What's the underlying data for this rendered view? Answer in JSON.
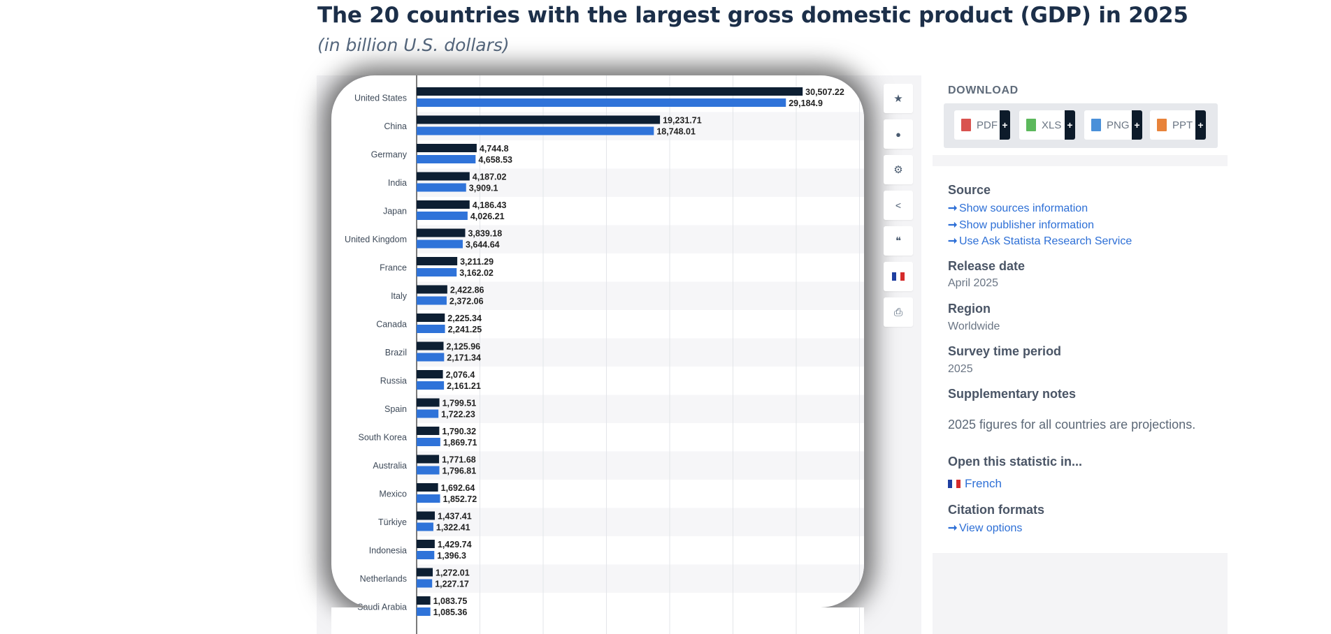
{
  "page": {
    "title": "The 20 countries with the largest gross domestic product (GDP) in 2025",
    "subtitle": "(in billion U.S. dollars)"
  },
  "colors": {
    "series_dark": "#0d1f33",
    "series_blue": "#2f73d9",
    "link": "#2d6fd6"
  },
  "toolbar": {
    "items": [
      {
        "name": "star-icon",
        "glyph": "★"
      },
      {
        "name": "bell-icon",
        "glyph": "🔔"
      },
      {
        "name": "gear-icon",
        "glyph": "⚙"
      },
      {
        "name": "share-icon",
        "glyph": "⋖"
      },
      {
        "name": "quote-icon",
        "glyph": "❝"
      },
      {
        "name": "french-flag-icon",
        "glyph": ""
      },
      {
        "name": "print-icon",
        "glyph": "⎙"
      }
    ]
  },
  "download": {
    "title": "DOWNLOAD",
    "buttons": [
      {
        "label": "PDF",
        "color": "#d9534f"
      },
      {
        "label": "XLS",
        "color": "#5cb85c"
      },
      {
        "label": "PNG",
        "color": "#4a90d9"
      },
      {
        "label": "PPT",
        "color": "#e8833a"
      }
    ],
    "plus": "+"
  },
  "info": {
    "source_heading": "Source",
    "source_links": [
      "Show sources information",
      "Show publisher information",
      "Use Ask Statista Research Service"
    ],
    "release_heading": "Release date",
    "release_value": "April 2025",
    "region_heading": "Region",
    "region_value": "Worldwide",
    "period_heading": "Survey time period",
    "period_value": "2025",
    "notes_heading": "Supplementary notes",
    "notes_value": "2025 figures for all countries are projections.",
    "open_heading": "Open this statistic in...",
    "open_value": "French",
    "citation_heading": "Citation formats",
    "citation_link": "View options"
  },
  "chart_data": {
    "type": "bar",
    "orientation": "horizontal",
    "categories": [
      "United States",
      "China",
      "Germany",
      "India",
      "Japan",
      "United Kingdom",
      "France",
      "Italy",
      "Canada",
      "Brazil",
      "Russia",
      "Spain",
      "South Korea",
      "Australia",
      "Mexico",
      "Türkiye",
      "Indonesia",
      "Netherlands",
      "Saudi Arabia"
    ],
    "series": [
      {
        "values": [
          30507.22,
          19231.71,
          4744.8,
          4187.02,
          4186.43,
          3839.18,
          3211.29,
          2422.86,
          2225.34,
          2125.96,
          2076.4,
          1799.51,
          1790.32,
          1771.68,
          1692.64,
          1437.41,
          1429.74,
          1272.01,
          1083.75
        ],
        "labels": [
          "30,507.22",
          "19,231.71",
          "4,744.8",
          "4,187.02",
          "4,186.43",
          "3,839.18",
          "3,211.29",
          "2,422.86",
          "2,225.34",
          "2,125.96",
          "2,076.4",
          "1,799.51",
          "1,790.32",
          "1,771.68",
          "1,692.64",
          "1,437.41",
          "1,429.74",
          "1,272.01",
          "1,083.75"
        ]
      },
      {
        "values": [
          29184.9,
          18748.01,
          4658.53,
          3909.1,
          4026.21,
          3644.64,
          3162.02,
          2372.06,
          2241.25,
          2171.34,
          2161.21,
          1722.23,
          1869.71,
          1796.81,
          1852.72,
          1322.41,
          1396.3,
          1227.17,
          1085.36
        ],
        "labels": [
          "29,184.9",
          "18,748.01",
          "4,658.53",
          "3,909.1",
          "4,026.21",
          "3,644.64",
          "3,162.02",
          "2,372.06",
          "2,241.25",
          "2,171.34",
          "2,161.21",
          "1,722.23",
          "1,869.71",
          "1,796.81",
          "1,852.72",
          "1,322.41",
          "1,396.3",
          "1,227.17",
          "1,085.36"
        ]
      }
    ],
    "xlim": [
      0,
      35000
    ],
    "grid": true,
    "legend": "none"
  }
}
